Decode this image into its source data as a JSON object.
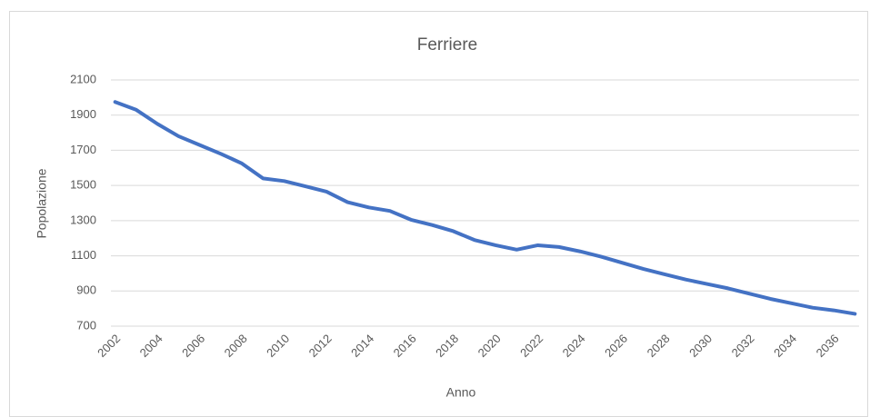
{
  "chart_data": {
    "type": "line",
    "title": "Ferriere",
    "x_label": "Anno",
    "y_label": "Popolazione",
    "x": [
      2002,
      2003,
      2004,
      2005,
      2006,
      2007,
      2008,
      2009,
      2010,
      2011,
      2012,
      2013,
      2014,
      2015,
      2016,
      2017,
      2018,
      2019,
      2020,
      2021,
      2022,
      2023,
      2024,
      2025,
      2026,
      2027,
      2028,
      2029,
      2030,
      2031,
      2032,
      2033,
      2034,
      2035,
      2036,
      2037
    ],
    "series": [
      {
        "name": "Popolazione",
        "color": "#4472c4",
        "values": [
          1975,
          1930,
          1850,
          1780,
          1730,
          1680,
          1625,
          1540,
          1525,
          1495,
          1465,
          1405,
          1375,
          1355,
          1305,
          1275,
          1240,
          1190,
          1160,
          1135,
          1160,
          1150,
          1125,
          1095,
          1060,
          1025,
          995,
          965,
          940,
          915,
          885,
          855,
          830,
          805,
          790,
          770
        ]
      }
    ],
    "xlim": [
      2001.8,
      2037.2
    ],
    "xticks": [
      2002,
      2004,
      2006,
      2008,
      2010,
      2012,
      2014,
      2016,
      2018,
      2020,
      2022,
      2024,
      2026,
      2028,
      2030,
      2032,
      2034,
      2036
    ],
    "ylim": [
      700,
      2100
    ],
    "yticks": [
      700,
      900,
      1100,
      1300,
      1500,
      1700,
      1900,
      2100
    ],
    "grid": true
  }
}
